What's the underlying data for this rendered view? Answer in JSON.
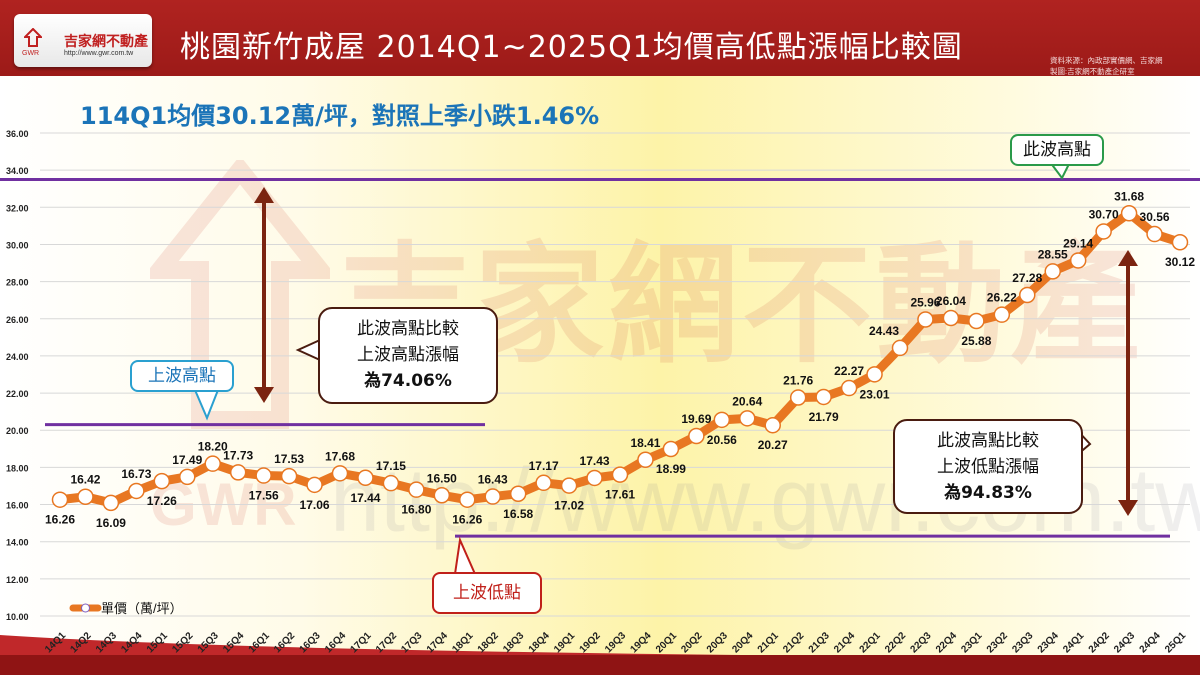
{
  "header": {
    "logo_name": "吉家網不動產",
    "logo_abbr": "GWR",
    "logo_url": "http://www.gwr.com.tw",
    "title": "桃園新竹成屋 2014Q1~2025Q1均價高低點漲幅比較圖",
    "source_line1": "資料來源：內政部實價網、吉家網",
    "source_line2": "製圖:吉家網不動產企研室"
  },
  "subtitle": "114Q1均價30.12萬/坪，對照上季小跌1.46%",
  "watermark": {
    "name": "吉家網不動產",
    "abbr": "GWR",
    "url": "http://www.gwr.com.tw"
  },
  "annotations": {
    "this_wave_high": "此波高點",
    "prev_wave_high": "上波高點",
    "prev_wave_low": "上波低點",
    "box1": {
      "line1": "此波高點比較",
      "line2": "上波高點漲幅",
      "line3": "為74.06%"
    },
    "box2": {
      "line1": "此波高點比較",
      "line2": "上波低點漲幅",
      "line3": "為94.83%"
    }
  },
  "colors": {
    "line": "#e87722",
    "header": "#a51c1c",
    "purple": "#7030a0",
    "arrow": "#7b2410"
  },
  "chart_data": {
    "type": "line",
    "title": "桃園新竹成屋 2014Q1~2025Q1均價高低點漲幅比較圖",
    "xlabel": "",
    "ylabel": "",
    "ylim": [
      10,
      36
    ],
    "yticks": [
      "10.00",
      "12.00",
      "14.00",
      "16.00",
      "18.00",
      "20.00",
      "22.00",
      "24.00",
      "26.00",
      "28.00",
      "30.00",
      "32.00",
      "34.00",
      "36.00"
    ],
    "legend": "單價（萬/坪）",
    "categories": [
      "14Q1",
      "14Q2",
      "14Q3",
      "14Q4",
      "15Q1",
      "15Q2",
      "15Q3",
      "15Q4",
      "16Q1",
      "16Q2",
      "16Q3",
      "16Q4",
      "17Q1",
      "17Q2",
      "17Q3",
      "17Q4",
      "18Q1",
      "18Q2",
      "18Q3",
      "18Q4",
      "19Q1",
      "19Q2",
      "19Q3",
      "19Q4",
      "20Q1",
      "20Q2",
      "20Q3",
      "20Q4",
      "21Q1",
      "21Q2",
      "21Q3",
      "21Q4",
      "22Q1",
      "22Q2",
      "22Q3",
      "22Q4",
      "23Q1",
      "23Q2",
      "23Q3",
      "23Q4",
      "24Q1",
      "24Q2",
      "24Q3",
      "24Q4",
      "25Q1"
    ],
    "series": [
      {
        "name": "單價（萬/坪）",
        "values": [
          16.26,
          16.42,
          16.09,
          16.73,
          17.26,
          17.49,
          18.2,
          17.73,
          17.56,
          17.53,
          17.06,
          17.68,
          17.44,
          17.15,
          16.8,
          16.5,
          16.26,
          16.43,
          16.58,
          17.17,
          17.02,
          17.43,
          17.61,
          18.41,
          18.99,
          19.69,
          20.56,
          20.64,
          20.27,
          21.76,
          21.79,
          22.27,
          23.01,
          24.43,
          25.96,
          26.04,
          25.88,
          26.22,
          27.28,
          28.55,
          29.14,
          30.7,
          31.68,
          30.56,
          30.12
        ]
      }
    ],
    "reference_lines": [
      {
        "name": "此波高點",
        "value": 33.5
      },
      {
        "name": "上波高點",
        "value": 20.3
      },
      {
        "name": "上波低點",
        "value": 14.3
      }
    ]
  }
}
